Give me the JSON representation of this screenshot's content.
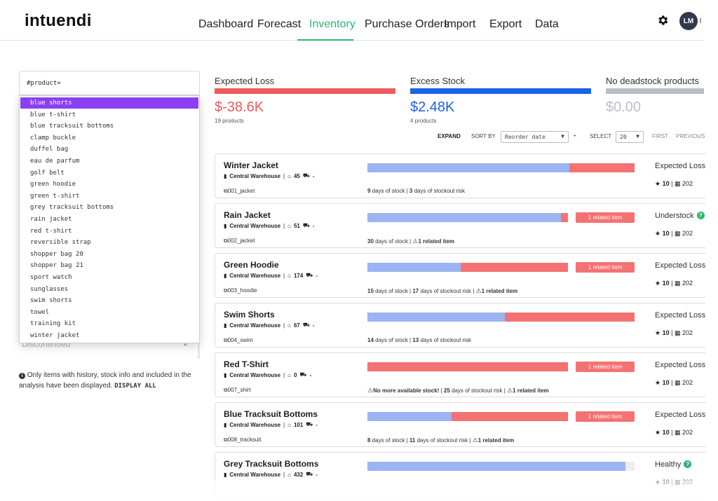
{
  "brand": {
    "logo": "intuendi",
    "accent": "#2bb673"
  },
  "nav": [
    {
      "label": "Dashboard",
      "active": false
    },
    {
      "label": "Forecast",
      "active": false
    },
    {
      "label": "Inventory",
      "active": true
    },
    {
      "label": "Purchase Orders",
      "active": false
    },
    {
      "label": "Import",
      "active": false
    },
    {
      "label": "Export",
      "active": false
    },
    {
      "label": "Data",
      "active": false
    }
  ],
  "user": {
    "initials": "LM",
    "name_fragment": "l"
  },
  "search": {
    "value": "#product="
  },
  "dropdown": {
    "items": [
      "blue shorts",
      "blue t-shirt",
      "blue tracksuit bottoms",
      "clamp buckle",
      "duffel bag",
      "eau de parfum",
      "golf belt",
      "green hoodie",
      "green t-shirt",
      "grey tracksuit bottoms",
      "rain jacket",
      "red t-shirt",
      "reversible strap",
      "shopper bag 20",
      "shopper bag 21",
      "sport watch",
      "sunglasses",
      "swim shorts",
      "towel",
      "training kit",
      "winter jacket"
    ],
    "selected": "blue shorts"
  },
  "sidebar": {
    "discontinued_label": "Discontinued",
    "discontinued_count": "2"
  },
  "note": {
    "text": "Only items with history, stock info and included in the analysis have been displayed.",
    "action": "DISPLAY ALL"
  },
  "kpis": [
    {
      "title": "Expected Loss",
      "value": "$-38.6K",
      "sub": "19 products",
      "color": "#f05a5a",
      "value_color": "#f05a5a"
    },
    {
      "title": "Excess Stock",
      "value": "$2.48K",
      "sub": "4 products",
      "color": "#1c62e8",
      "value_color": "#1c62e8"
    },
    {
      "title": "No deadstock products",
      "value": "$0.00",
      "sub": "",
      "color": "#b9bfc8",
      "value_color": "#b9bfc8"
    }
  ],
  "toolbar": {
    "expand": "EXPAND",
    "sort_by": "SORT BY",
    "sort_value": "Reorder date",
    "select": "SELECT",
    "select_value": "20",
    "first": "FIRST",
    "previous": "PREVIOUS"
  },
  "products": [
    {
      "name": "Winter Jacket",
      "warehouse": "Central Warehouse",
      "stock": "45",
      "incoming": "-",
      "sku": "001_jacket",
      "blue": 0.755,
      "red": 0.245,
      "related": "",
      "stats": [
        {
          "b": "9",
          "t": " days of stock"
        },
        {
          "b": "3",
          "t": " days of stockout risk"
        }
      ],
      "status": "Expected Loss",
      "status_q": false,
      "score": "10",
      "date": "202"
    },
    {
      "name": "Rain Jacket",
      "warehouse": "Central Warehouse",
      "stock": "51",
      "incoming": "-",
      "sku": "002_jacket",
      "blue": 0.725,
      "red": 0.025,
      "related": "1 related item",
      "stats": [
        {
          "b": "30",
          "t": " days of stock"
        },
        {
          "b": "",
          "t": "",
          "warn": "1 related item"
        }
      ],
      "status": "Understock",
      "status_q": true,
      "score": "10",
      "date": "202"
    },
    {
      "name": "Green Hoodie",
      "warehouse": "Central Warehouse",
      "stock": "174",
      "incoming": "-",
      "sku": "003_hoodie",
      "blue": 0.35,
      "red": 0.4,
      "related": "1 related item",
      "stats": [
        {
          "b": "15",
          "t": " days of stock"
        },
        {
          "b": "17",
          "t": " days of stockout risk"
        },
        {
          "b": "",
          "t": "",
          "warn": "1 related item"
        }
      ],
      "status": "Expected Loss",
      "status_q": false,
      "score": "10",
      "date": "202"
    },
    {
      "name": "Swim Shorts",
      "warehouse": "Central Warehouse",
      "stock": "67",
      "incoming": "-",
      "sku": "004_swim",
      "blue": 0.515,
      "red": 0.485,
      "related": "",
      "stats": [
        {
          "b": "14",
          "t": " days of stock"
        },
        {
          "b": "13",
          "t": " days of stockout risk"
        }
      ],
      "status": "Expected Loss",
      "status_q": false,
      "score": "10",
      "date": "202"
    },
    {
      "name": "Red T-Shirt",
      "warehouse": "Central Warehouse",
      "stock": "0",
      "incoming": "-",
      "sku": "007_shirt",
      "blue": 0.0,
      "red": 0.75,
      "related": "1 related item",
      "stats": [
        {
          "b": "",
          "t": "",
          "warn": "No more available stock!"
        },
        {
          "b": "25",
          "t": " days of stockout risk"
        },
        {
          "b": "",
          "t": "",
          "warn": "1 related item"
        }
      ],
      "status": "Expected Loss",
      "status_q": false,
      "score": "10",
      "date": "202"
    },
    {
      "name": "Blue Tracksuit Bottoms",
      "warehouse": "Central Warehouse",
      "stock": "101",
      "incoming": "-",
      "sku": "008_tracksuit",
      "blue": 0.315,
      "red": 0.435,
      "related": "1 related item",
      "stats": [
        {
          "b": "8",
          "t": " days of stock"
        },
        {
          "b": "11",
          "t": " days of stockout risk"
        },
        {
          "b": "",
          "t": "",
          "warn": "1 related item"
        }
      ],
      "status": "Expected Loss",
      "status_q": false,
      "score": "10",
      "date": "202"
    },
    {
      "name": "Grey Tracksuit Bottoms",
      "warehouse": "Central Warehouse",
      "stock": "432",
      "incoming": "-",
      "sku": "",
      "blue": 0.965,
      "red": 0.0,
      "related": "",
      "stats": [],
      "status": "Healthy",
      "status_q": true,
      "score": "10",
      "date": "202"
    }
  ]
}
